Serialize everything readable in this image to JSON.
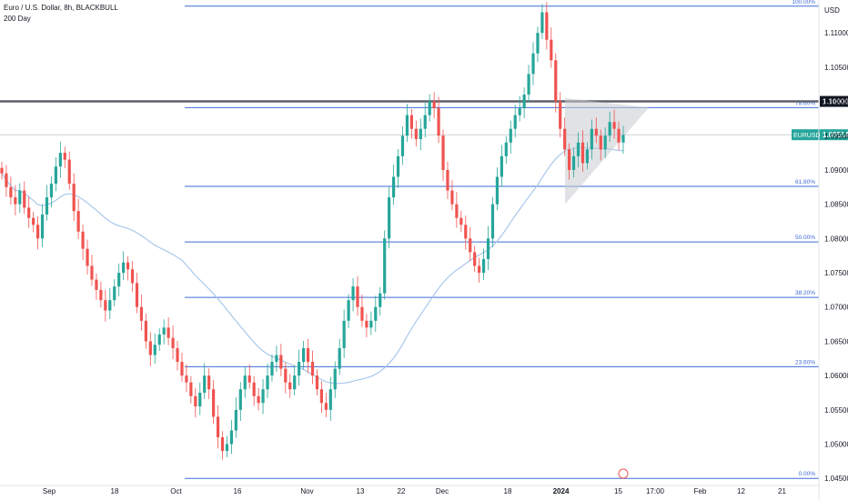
{
  "header": {
    "title": "Euro / U.S. Dollar, 8h, BLACKBULL",
    "indicator": "200 Day",
    "currency": "USD"
  },
  "chart_data": {
    "type": "candlestick",
    "ylim": [
      1.0445,
      1.114
    ],
    "y_ticks": [
      "1.11000",
      "1.10500",
      "1.10000",
      "1.09500",
      "1.09000",
      "1.08500",
      "1.08000",
      "1.07500",
      "1.07000",
      "1.06500",
      "1.06000",
      "1.05500",
      "1.05000",
      "1.04500"
    ],
    "x_ticks": [
      "Sep",
      "18",
      "Oct",
      "16",
      "Nov",
      "13",
      "22",
      "Dec",
      "18",
      "2024",
      "15",
      "17:00",
      "Feb",
      "12",
      "21"
    ],
    "x_tick_frac": [
      0.06,
      0.14,
      0.215,
      0.29,
      0.375,
      0.44,
      0.49,
      0.54,
      0.62,
      0.685,
      0.755,
      0.8,
      0.855,
      0.905,
      0.955
    ],
    "fib_levels": [
      {
        "label": "100.00%",
        "price": 1.1139
      },
      {
        "label": "78.60%",
        "price": 1.0991
      },
      {
        "label": "61.80%",
        "price": 1.0876
      },
      {
        "label": "50.00%",
        "price": 1.0795
      },
      {
        "label": "38.20%",
        "price": 1.0714
      },
      {
        "label": "23.60%",
        "price": 1.0613
      },
      {
        "label": "0.00%",
        "price": 1.045
      }
    ],
    "resistance": {
      "price": 1.1,
      "label": "1.10000"
    },
    "last_price": {
      "symbol": "EURUSD",
      "price": 1.09514,
      "label": "1.09514"
    },
    "colors": {
      "up": "#26a69a",
      "down": "#ef5350",
      "fib": "#3d6bd6",
      "ma": "#a8c8ec",
      "resistance": "#5d606b",
      "triangle": "#c8cad0"
    },
    "closes": [
      1.0895,
      1.0875,
      1.086,
      1.085,
      1.087,
      1.0845,
      1.083,
      1.082,
      1.08,
      1.0835,
      1.086,
      1.088,
      1.0905,
      1.0925,
      1.0915,
      1.088,
      1.084,
      1.081,
      1.0785,
      1.076,
      1.074,
      1.0725,
      1.071,
      1.0695,
      1.071,
      1.073,
      1.075,
      1.0765,
      1.0755,
      1.0735,
      1.07,
      1.068,
      1.065,
      1.063,
      1.0645,
      1.066,
      1.067,
      1.0655,
      1.064,
      1.062,
      1.06,
      1.059,
      1.057,
      1.0555,
      1.0575,
      1.06,
      1.058,
      1.054,
      1.051,
      1.049,
      1.05,
      1.052,
      1.055,
      1.058,
      1.06,
      1.059,
      1.057,
      1.056,
      1.058,
      1.06,
      1.062,
      1.063,
      1.061,
      1.059,
      1.058,
      1.06,
      1.062,
      1.064,
      1.062,
      1.06,
      1.058,
      1.056,
      1.055,
      1.058,
      1.061,
      1.064,
      1.068,
      1.071,
      1.073,
      1.07,
      1.068,
      1.067,
      1.068,
      1.07,
      1.072,
      1.08,
      1.086,
      1.089,
      1.092,
      1.095,
      1.098,
      1.096,
      1.0945,
      1.096,
      1.098,
      1.1,
      1.099,
      1.095,
      1.09,
      1.087,
      1.085,
      1.083,
      1.082,
      1.08,
      1.078,
      1.076,
      1.075,
      1.077,
      1.08,
      1.085,
      1.089,
      1.092,
      1.094,
      1.096,
      1.098,
      1.099,
      1.101,
      1.104,
      1.107,
      1.11,
      1.113,
      1.109,
      1.106,
      1.1,
      1.096,
      1.093,
      1.09,
      1.092,
      1.094,
      1.091,
      1.093,
      1.096,
      1.095,
      1.093,
      1.095,
      1.097,
      1.096,
      1.094,
      1.0951
    ],
    "ma_start_price": 1.0805,
    "ma_end_price": 1.0845
  }
}
